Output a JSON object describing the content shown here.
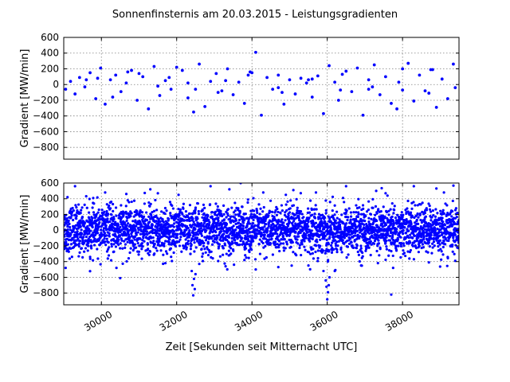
{
  "figure": {
    "title": "Sonnenfinsternis am 20.03.2015 - Leistungsgradienten",
    "marker_color": "#0000ff"
  },
  "chart_data": [
    {
      "type": "scatter",
      "title": "",
      "xlabel": "",
      "ylabel": "Gradient [MW/min]",
      "xlim": [
        29000,
        39500
      ],
      "ylim": [
        -950,
        600
      ],
      "yticks": [
        600,
        400,
        200,
        0,
        -200,
        -400,
        -600,
        -800
      ],
      "ytick_labels": [
        "600",
        "400",
        "200",
        "0",
        "−200",
        "−400",
        "−600",
        "−800"
      ],
      "xticks": [
        30000,
        32000,
        34000,
        36000,
        38000
      ],
      "grid": true,
      "series": [
        {
          "x": [
            29050,
            29180,
            29300,
            29420,
            29560,
            29700,
            29850,
            29980,
            30100,
            30240,
            30380,
            30520,
            30660,
            30800,
            30950,
            31100,
            31250,
            31400,
            31550,
            31700,
            31850,
            32000,
            32150,
            32300,
            32450,
            32600,
            32750,
            32900,
            33050,
            33200,
            33350,
            33500,
            33650,
            33800,
            33950,
            34100,
            34250,
            34400,
            34550,
            34700,
            34850,
            35000,
            35150,
            35300,
            35450,
            35600,
            35750,
            35900,
            36050,
            36200,
            36350,
            36500,
            36650,
            36800,
            36950,
            37100,
            37250,
            37400,
            37550,
            37700,
            37850,
            38000,
            38150,
            38300,
            38450,
            38600,
            38750,
            38900,
            39050,
            39200,
            39350,
            29600,
            30300,
            31000,
            31800,
            32500,
            33300,
            34000,
            34800,
            35600,
            36400,
            37200,
            38000,
            38800,
            39400,
            29900,
            30700,
            31500,
            32300,
            33100,
            33900,
            34700,
            35500,
            36300,
            37100,
            37900,
            38700
          ],
          "y": [
            -60,
            40,
            -120,
            90,
            -30,
            150,
            -180,
            210,
            -250,
            60,
            120,
            -90,
            20,
            180,
            -200,
            100,
            -310,
            230,
            -140,
            50,
            -60,
            220,
            180,
            -170,
            -350,
            260,
            -280,
            40,
            140,
            -80,
            200,
            -130,
            30,
            -240,
            160,
            410,
            -390,
            90,
            -60,
            120,
            -250,
            60,
            -120,
            80,
            20,
            -160,
            110,
            -370,
            240,
            30,
            -70,
            170,
            -90,
            210,
            -390,
            60,
            250,
            -130,
            100,
            -240,
            -310,
            200,
            270,
            -210,
            120,
            -80,
            190,
            -290,
            70,
            -180,
            260,
            60,
            -160,
            140,
            90,
            -60,
            50,
            150,
            -100,
            70,
            130,
            -30,
            -70,
            190,
            -40,
            80,
            160,
            -20,
            20,
            -100,
            120,
            -40,
            60,
            -200,
            -60,
            30,
            -110
          ]
        }
      ]
    },
    {
      "type": "scatter",
      "title": "",
      "xlabel": "Zeit [Sekunden seit Mitternacht UTC]",
      "ylabel": "Gradient [MW/min]",
      "xlim": [
        29000,
        39500
      ],
      "ylim": [
        -950,
        600
      ],
      "yticks": [
        600,
        400,
        200,
        0,
        -200,
        -400,
        -600,
        -800
      ],
      "ytick_labels": [
        "600",
        "400",
        "200",
        "0",
        "−200",
        "−400",
        "−600",
        "−800"
      ],
      "xticks": [
        30000,
        32000,
        34000,
        36000,
        38000
      ],
      "xtick_labels": [
        "30000",
        "32000",
        "34000",
        "36000",
        "38000"
      ],
      "grid": true,
      "dense_samples": {
        "x_start": 29000,
        "x_end": 39500,
        "count": 3500,
        "typical_range": [
          -200,
          200
        ],
        "overall_range": [
          -550,
          580
        ]
      },
      "series": [
        {
          "x": [
            29050,
            29300,
            29700,
            30100,
            30500,
            30700,
            31300,
            31700,
            32050,
            32400,
            32420,
            32440,
            32460,
            32480,
            32500,
            32900,
            33300,
            33700,
            33800,
            34300,
            34700,
            35100,
            35500,
            35700,
            35900,
            35960,
            35980,
            36000,
            36020,
            36040,
            36060,
            36500,
            36900,
            37300,
            37550,
            37700,
            37750,
            38300,
            38700,
            39100,
            39400,
            29100,
            30400,
            31500,
            32600,
            33400,
            34100,
            34900,
            36200,
            37600,
            38900
          ],
          "y": [
            -480,
            560,
            -340,
            480,
            -610,
            380,
            520,
            -420,
            450,
            -520,
            -700,
            -830,
            -620,
            -750,
            -560,
            560,
            -460,
            600,
            -380,
            480,
            -470,
            510,
            -450,
            480,
            -520,
            -640,
            -720,
            -880,
            -790,
            -700,
            -600,
            560,
            -450,
            500,
            470,
            -820,
            -480,
            560,
            -410,
            480,
            -390,
            420,
            -480,
            470,
            -430,
            520,
            -500,
            450,
            -520,
            440,
            530
          ]
        }
      ]
    }
  ]
}
